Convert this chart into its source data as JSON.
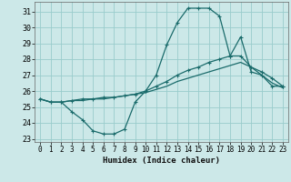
{
  "xlabel": "Humidex (Indice chaleur)",
  "background_color": "#cce8e8",
  "grid_color": "#99cccc",
  "line_color": "#1a6b6b",
  "x_ticks": [
    0,
    1,
    2,
    3,
    4,
    5,
    6,
    7,
    8,
    9,
    10,
    11,
    12,
    13,
    14,
    15,
    16,
    17,
    18,
    19,
    20,
    21,
    22,
    23
  ],
  "ylim": [
    22.8,
    31.6
  ],
  "xlim": [
    -0.5,
    23.5
  ],
  "y_ticks": [
    23,
    24,
    25,
    26,
    27,
    28,
    29,
    30,
    31
  ],
  "line1_x": [
    0,
    1,
    2,
    3,
    4,
    5,
    6,
    7,
    8,
    9,
    10,
    11,
    12,
    13,
    14,
    15,
    16,
    17,
    18,
    19,
    20,
    21,
    22,
    23
  ],
  "line1_y": [
    25.5,
    25.3,
    25.3,
    24.7,
    24.2,
    23.5,
    23.3,
    23.3,
    23.6,
    25.3,
    26.0,
    27.0,
    28.9,
    30.3,
    31.2,
    31.2,
    31.2,
    30.7,
    28.2,
    29.4,
    27.2,
    27.0,
    26.3,
    26.3
  ],
  "line2_x": [
    0,
    1,
    2,
    3,
    4,
    5,
    6,
    7,
    8,
    9,
    10,
    11,
    12,
    13,
    14,
    15,
    16,
    17,
    18,
    19,
    20,
    21,
    22,
    23
  ],
  "line2_y": [
    25.5,
    25.3,
    25.3,
    25.4,
    25.5,
    25.5,
    25.6,
    25.6,
    25.7,
    25.8,
    26.0,
    26.3,
    26.6,
    27.0,
    27.3,
    27.5,
    27.8,
    28.0,
    28.2,
    28.2,
    27.5,
    27.2,
    26.8,
    26.3
  ],
  "line3_x": [
    0,
    1,
    2,
    3,
    4,
    5,
    6,
    7,
    8,
    9,
    10,
    11,
    12,
    13,
    14,
    15,
    16,
    17,
    18,
    19,
    20,
    21,
    22,
    23
  ],
  "line3_y": [
    25.5,
    25.3,
    25.3,
    25.4,
    25.4,
    25.5,
    25.5,
    25.6,
    25.7,
    25.8,
    25.9,
    26.1,
    26.3,
    26.6,
    26.8,
    27.0,
    27.2,
    27.4,
    27.6,
    27.8,
    27.5,
    27.0,
    26.5,
    26.2
  ]
}
